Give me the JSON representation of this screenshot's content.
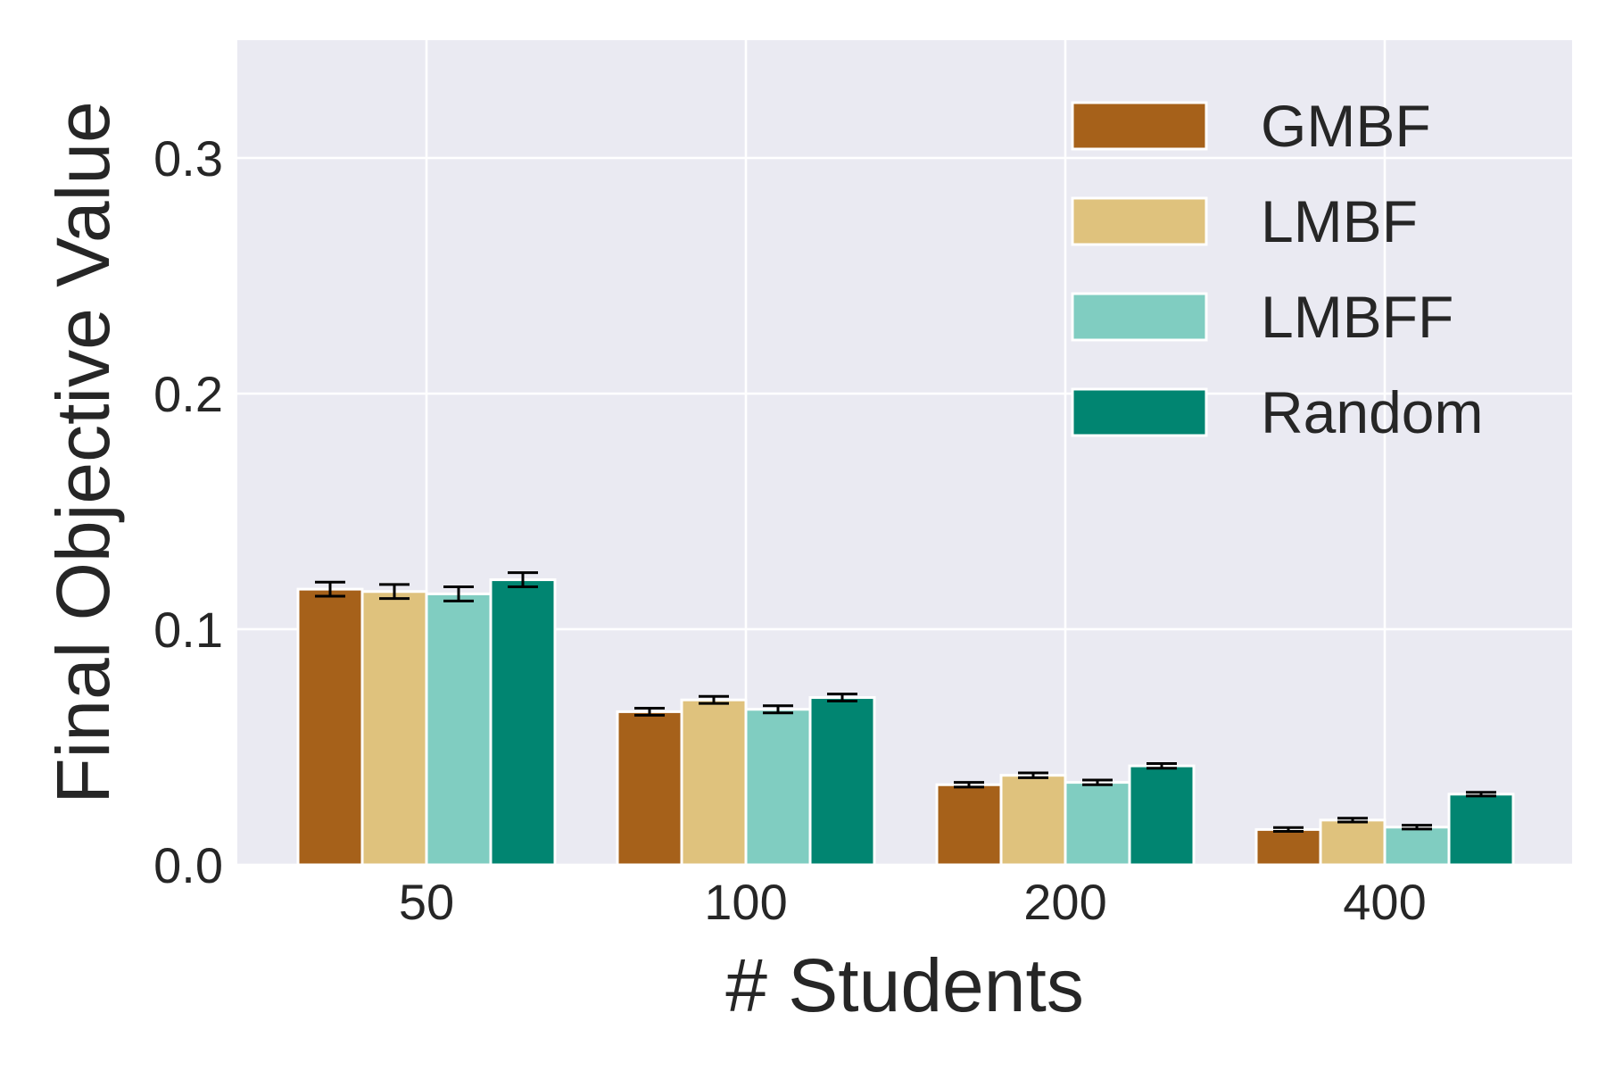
{
  "chart_data": {
    "type": "bar",
    "xlabel": "# Students",
    "ylabel": "Final Objective Value",
    "categories": [
      "50",
      "100",
      "200",
      "400"
    ],
    "ylim": [
      0,
      0.35
    ],
    "yticks": [
      0.0,
      0.1,
      0.2,
      0.3
    ],
    "ytick_labels": [
      "0.0",
      "0.1",
      "0.2",
      "0.3"
    ],
    "grid": true,
    "legend_position": "top-right",
    "series": [
      {
        "name": "GMBF",
        "color": "#a6611a",
        "values": [
          0.117,
          0.065,
          0.034,
          0.015
        ],
        "errors": [
          0.003,
          0.0015,
          0.001,
          0.0008
        ]
      },
      {
        "name": "LMBF",
        "color": "#dfc27d",
        "values": [
          0.116,
          0.07,
          0.038,
          0.019
        ],
        "errors": [
          0.003,
          0.0015,
          0.001,
          0.0008
        ]
      },
      {
        "name": "LMBFF",
        "color": "#80cdc1",
        "values": [
          0.115,
          0.066,
          0.035,
          0.016
        ],
        "errors": [
          0.003,
          0.0015,
          0.001,
          0.0008
        ]
      },
      {
        "name": "Random",
        "color": "#018571",
        "values": [
          0.121,
          0.071,
          0.042,
          0.03
        ],
        "errors": [
          0.003,
          0.0015,
          0.001,
          0.0008
        ]
      }
    ]
  }
}
